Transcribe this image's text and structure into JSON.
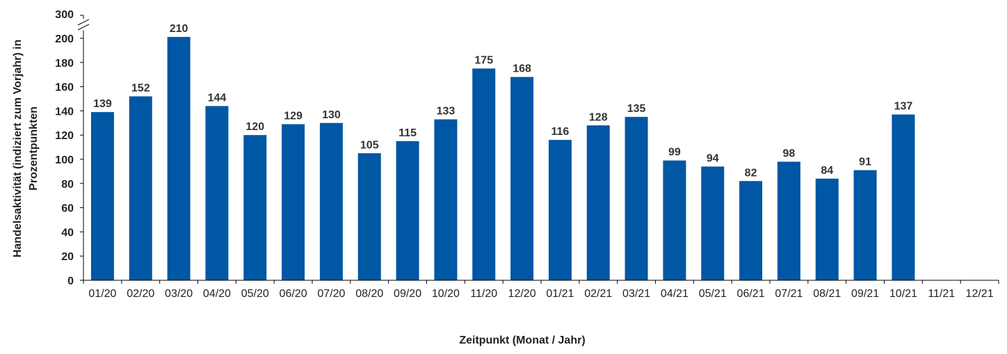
{
  "chart_data": {
    "type": "bar",
    "title": "",
    "xlabel": "Zeitpunkt (Monat / Jahr)",
    "ylabel_lines": [
      "Handelsaktivität (indiziert zum Vorjahr) in",
      "Prozentpunkten"
    ],
    "categories": [
      "01/20",
      "02/20",
      "03/20",
      "04/20",
      "05/20",
      "06/20",
      "07/20",
      "08/20",
      "09/20",
      "10/20",
      "11/20",
      "12/20",
      "01/21",
      "02/21",
      "03/21",
      "04/21",
      "05/21",
      "06/21",
      "07/21",
      "08/21",
      "09/21",
      "10/21",
      "11/21",
      "12/21"
    ],
    "values": [
      139,
      152,
      210,
      144,
      120,
      129,
      130,
      105,
      115,
      133,
      175,
      168,
      116,
      128,
      135,
      99,
      94,
      82,
      98,
      84,
      91,
      137,
      null,
      null
    ],
    "y_ticks": [
      0,
      20,
      40,
      60,
      80,
      100,
      120,
      140,
      160,
      180,
      200
    ],
    "y_break_label": "300",
    "ylim": [
      0,
      300
    ],
    "broken_axis": true,
    "grid": false,
    "bar_color": "#0057a4",
    "axis_color": "#000000"
  }
}
